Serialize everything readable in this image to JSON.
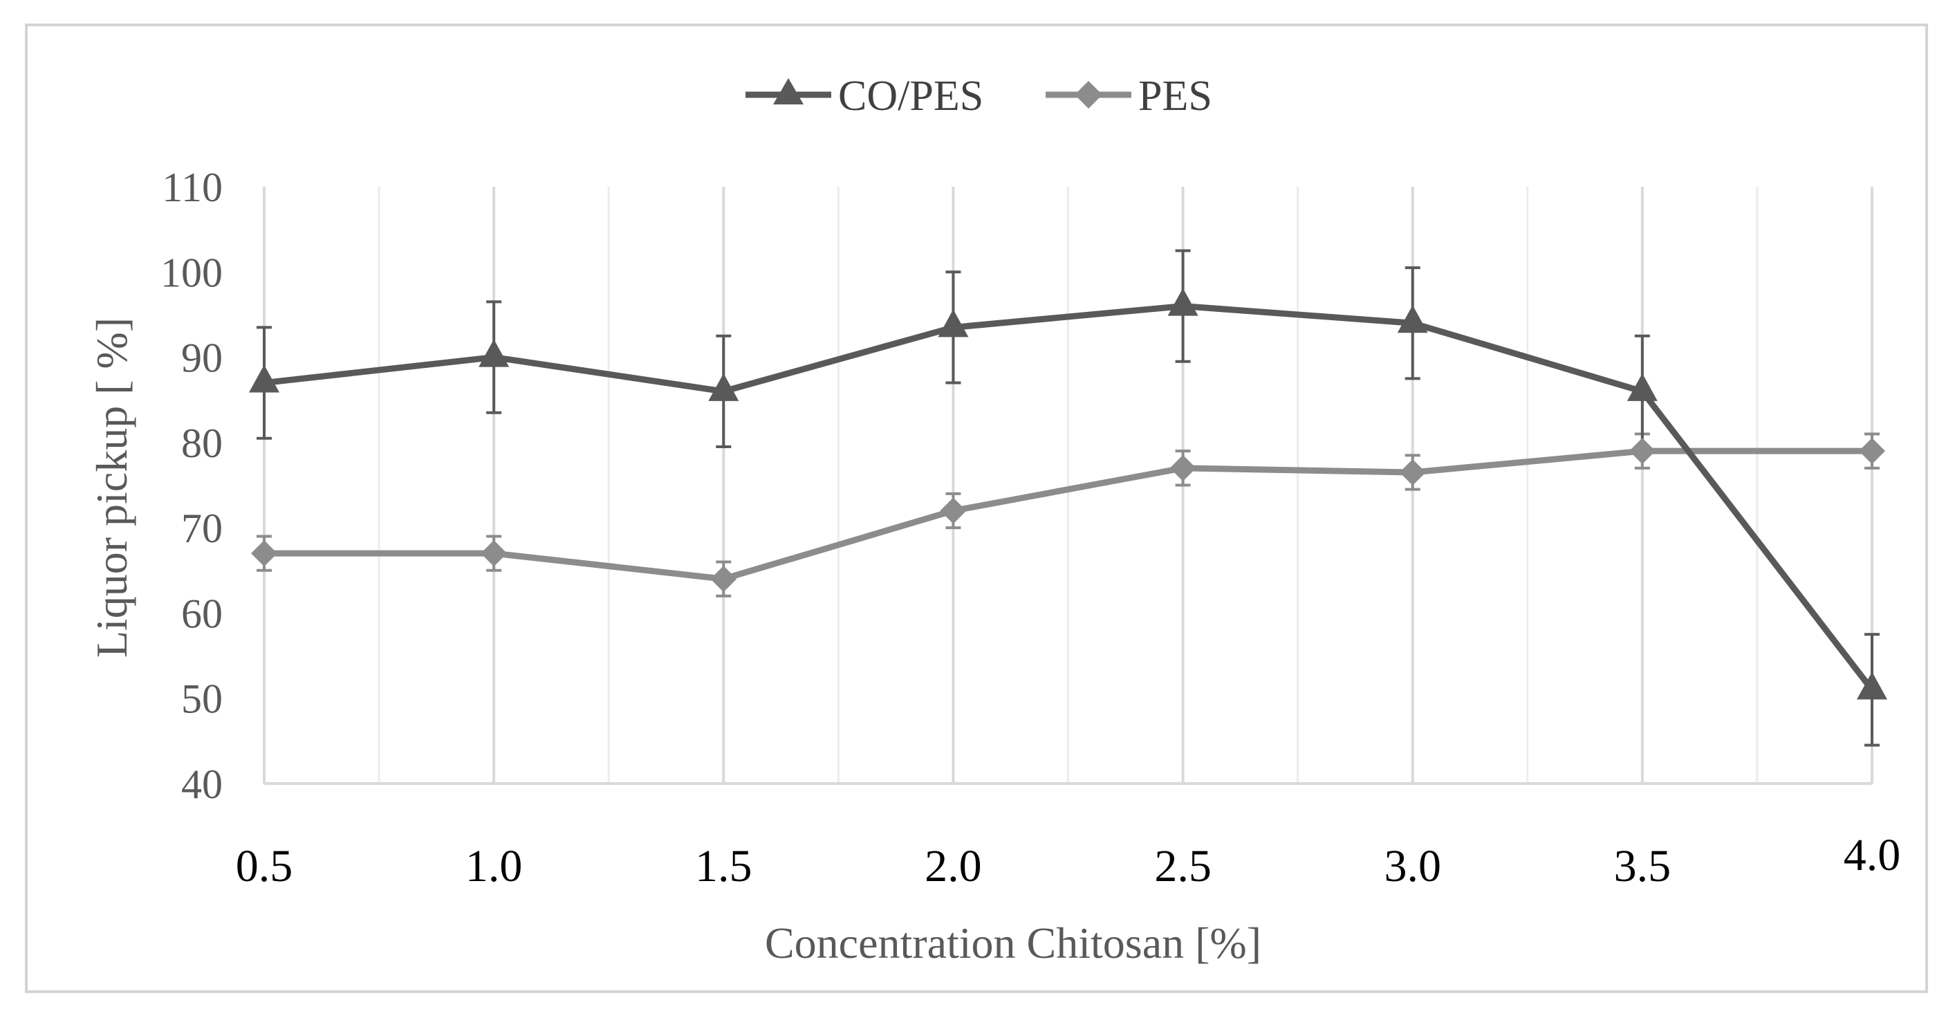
{
  "chart_data": {
    "type": "line",
    "title": "",
    "xlabel": "Concentration Chitosan [%]",
    "ylabel": "Liquor pickup [ %]",
    "x": [
      "0.5",
      "1.0",
      "1.5",
      "2.0",
      "2.5",
      "3.0",
      "3.5",
      "4.0"
    ],
    "ylim": [
      40,
      110
    ],
    "yticks": [
      "40",
      "50",
      "60",
      "70",
      "80",
      "90",
      "100",
      "110"
    ],
    "grid": "vertical",
    "legend_position": "top-center",
    "series": [
      {
        "name": "CO/PES",
        "marker": "triangle",
        "color": "#595959",
        "values": [
          87,
          90,
          86,
          93.5,
          96,
          94,
          86,
          51
        ],
        "error": [
          6.5,
          6.5,
          6.5,
          6.5,
          6.5,
          6.5,
          6.5,
          6.5
        ]
      },
      {
        "name": "PES",
        "marker": "diamond",
        "color": "#8c8c8c",
        "values": [
          67,
          67,
          64,
          72,
          77,
          76.5,
          79,
          79
        ],
        "error": [
          2,
          2,
          2,
          2,
          2,
          2,
          2,
          2
        ]
      }
    ]
  }
}
